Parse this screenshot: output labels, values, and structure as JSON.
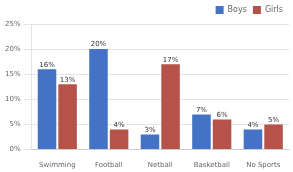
{
  "chart_data": {
    "type": "bar",
    "categories": [
      "Swimming",
      "Football",
      "Netball",
      "Basketball",
      "No Sports"
    ],
    "series": [
      {
        "name": "Boys",
        "color": "#4472C4",
        "values": [
          16,
          20,
          3,
          7,
          4
        ],
        "value_labels": [
          "16%",
          "20%",
          "3%",
          "7%",
          "4%"
        ]
      },
      {
        "name": "Girls",
        "color": "#B5534A",
        "values": [
          13,
          4,
          17,
          6,
          5
        ],
        "value_labels": [
          "13%",
          "4%",
          "17%",
          "6%",
          "5%"
        ]
      }
    ],
    "ylim": [
      0,
      25
    ],
    "yticks": [
      {
        "value": 0,
        "label": "0%"
      },
      {
        "value": 5,
        "label": "5%"
      },
      {
        "value": 10,
        "label": "10%"
      },
      {
        "value": 15,
        "label": "15%"
      },
      {
        "value": 20,
        "label": "20%"
      },
      {
        "value": 25,
        "label": "25%"
      }
    ],
    "grid": true,
    "legend": "upper right",
    "data_labels": true
  }
}
